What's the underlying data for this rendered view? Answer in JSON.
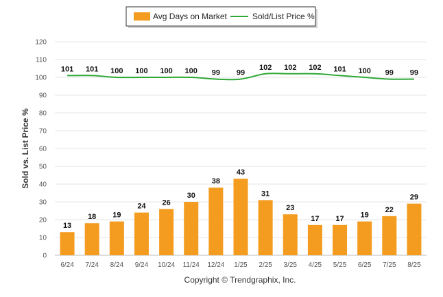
{
  "chart_data": {
    "type": "bar",
    "title": "",
    "xlabel": "",
    "ylabel": "Sold vs. List Price %",
    "ylim": [
      0,
      120
    ],
    "yticks": [
      0,
      10,
      20,
      30,
      40,
      50,
      60,
      70,
      80,
      90,
      100,
      110,
      120
    ],
    "grid": true,
    "legend_position": "top-center",
    "categories": [
      "6/24",
      "7/24",
      "8/24",
      "9/24",
      "10/24",
      "11/24",
      "12/24",
      "1/25",
      "2/25",
      "3/25",
      "4/25",
      "5/25",
      "6/25",
      "7/25",
      "8/25"
    ],
    "series": [
      {
        "name": "Avg Days on Market",
        "type": "bar",
        "color": "#F39C1F",
        "values": [
          13,
          18,
          19,
          24,
          26,
          30,
          38,
          43,
          31,
          23,
          17,
          17,
          19,
          22,
          29
        ]
      },
      {
        "name": "Sold/List Price %",
        "type": "line",
        "color": "#2EA836",
        "values": [
          101,
          101,
          100,
          100,
          100,
          100,
          99,
          99,
          102,
          102,
          102,
          101,
          100,
          99,
          99
        ]
      }
    ]
  },
  "footer": {
    "copyright": "Copyright © Trendgraphix, Inc."
  }
}
